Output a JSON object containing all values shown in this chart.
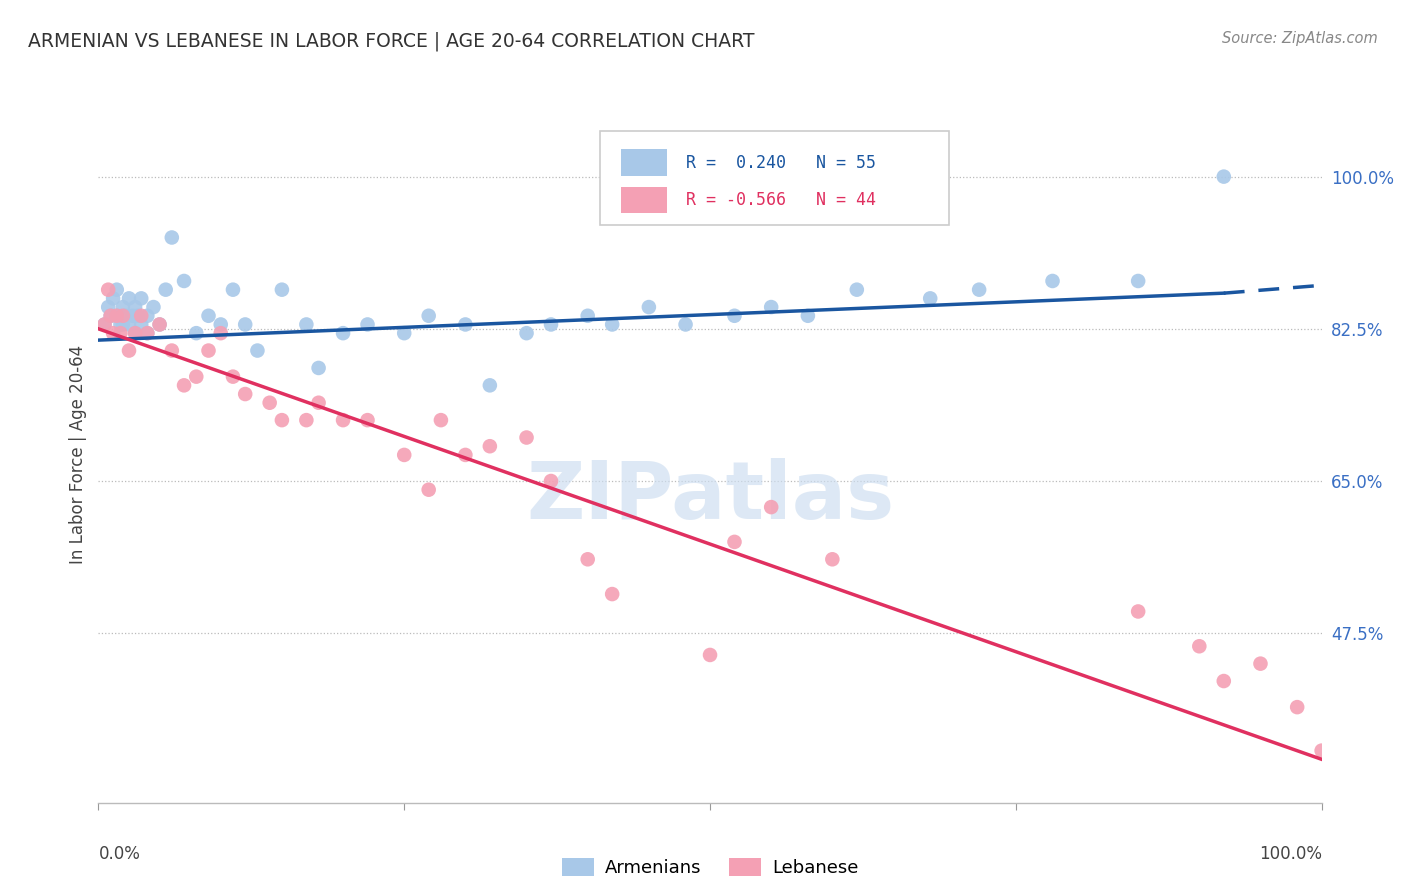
{
  "title": "ARMENIAN VS LEBANESE IN LABOR FORCE | AGE 20-64 CORRELATION CHART",
  "source": "Source: ZipAtlas.com",
  "ylabel": "In Labor Force | Age 20-64",
  "ytick_vals": [
    0.475,
    0.65,
    0.825,
    1.0
  ],
  "ytick_labels": [
    "47.5%",
    "65.0%",
    "82.5%",
    "100.0%"
  ],
  "xlim": [
    0.0,
    1.0
  ],
  "ylim": [
    0.28,
    1.08
  ],
  "r_armenian": 0.24,
  "n_armenian": 55,
  "r_lebanese": -0.566,
  "n_lebanese": 44,
  "armenian_color": "#a8c8e8",
  "lebanese_color": "#f4a0b4",
  "armenian_line_color": "#1a56a0",
  "lebanese_line_color": "#e03060",
  "legend_armenian": "Armenians",
  "legend_lebanese": "Lebanese",
  "armenian_scatter_x": [
    0.005,
    0.008,
    0.01,
    0.012,
    0.015,
    0.015,
    0.018,
    0.02,
    0.02,
    0.022,
    0.025,
    0.025,
    0.028,
    0.03,
    0.03,
    0.032,
    0.035,
    0.035,
    0.04,
    0.04,
    0.045,
    0.05,
    0.055,
    0.06,
    0.07,
    0.08,
    0.09,
    0.1,
    0.11,
    0.12,
    0.13,
    0.15,
    0.17,
    0.18,
    0.2,
    0.22,
    0.25,
    0.27,
    0.3,
    0.32,
    0.35,
    0.37,
    0.4,
    0.42,
    0.45,
    0.48,
    0.52,
    0.55,
    0.58,
    0.62,
    0.68,
    0.72,
    0.78,
    0.85,
    0.92
  ],
  "armenian_scatter_y": [
    0.83,
    0.85,
    0.84,
    0.86,
    0.87,
    0.84,
    0.83,
    0.85,
    0.83,
    0.84,
    0.86,
    0.83,
    0.84,
    0.85,
    0.82,
    0.84,
    0.83,
    0.86,
    0.82,
    0.84,
    0.85,
    0.83,
    0.87,
    0.93,
    0.88,
    0.82,
    0.84,
    0.83,
    0.87,
    0.83,
    0.8,
    0.87,
    0.83,
    0.78,
    0.82,
    0.83,
    0.82,
    0.84,
    0.83,
    0.76,
    0.82,
    0.83,
    0.84,
    0.83,
    0.85,
    0.83,
    0.84,
    0.85,
    0.84,
    0.87,
    0.86,
    0.87,
    0.88,
    0.88,
    1.0
  ],
  "lebanese_scatter_x": [
    0.005,
    0.008,
    0.01,
    0.012,
    0.015,
    0.018,
    0.02,
    0.025,
    0.03,
    0.035,
    0.04,
    0.05,
    0.06,
    0.07,
    0.08,
    0.09,
    0.1,
    0.11,
    0.12,
    0.14,
    0.15,
    0.17,
    0.18,
    0.2,
    0.22,
    0.25,
    0.27,
    0.28,
    0.3,
    0.32,
    0.35,
    0.37,
    0.4,
    0.42,
    0.5,
    0.52,
    0.55,
    0.6,
    0.85,
    0.9,
    0.92,
    0.95,
    0.98,
    1.0
  ],
  "lebanese_scatter_y": [
    0.83,
    0.87,
    0.84,
    0.82,
    0.84,
    0.82,
    0.84,
    0.8,
    0.82,
    0.84,
    0.82,
    0.83,
    0.8,
    0.76,
    0.77,
    0.8,
    0.82,
    0.77,
    0.75,
    0.74,
    0.72,
    0.72,
    0.74,
    0.72,
    0.72,
    0.68,
    0.64,
    0.72,
    0.68,
    0.69,
    0.7,
    0.65,
    0.56,
    0.52,
    0.45,
    0.58,
    0.62,
    0.56,
    0.5,
    0.46,
    0.42,
    0.44,
    0.39,
    0.34
  ],
  "arm_line_x0": 0.0,
  "arm_line_x_solid_end": 0.92,
  "arm_line_x1": 1.0,
  "arm_line_y0": 0.812,
  "arm_line_y_solid_end": 0.866,
  "arm_line_y1": 0.875,
  "leb_line_x0": 0.0,
  "leb_line_x1": 1.0,
  "leb_line_y0": 0.825,
  "leb_line_y1": 0.33
}
